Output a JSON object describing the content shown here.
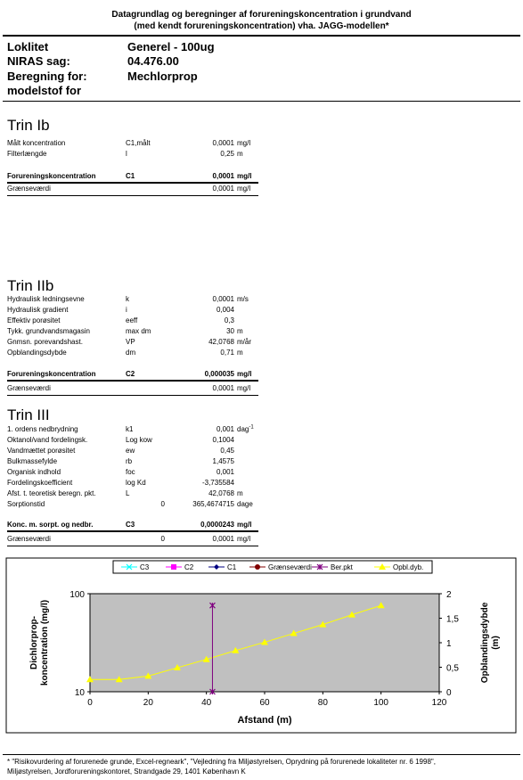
{
  "title": {
    "line1": "Datagrundlag og beregninger af forureningskoncentration i grundvand",
    "line2": "(med kendt forureningskoncentration) vha. JAGG-modellen*"
  },
  "header": [
    {
      "label": "Loklitet",
      "value": "Generel - 100ug"
    },
    {
      "label": "NIRAS sag:",
      "value": "04.476.00"
    },
    {
      "label": "Beregning for:",
      "value": "Mechlorprop"
    },
    {
      "label": "modelstof for",
      "value": ""
    }
  ],
  "trin1": {
    "title": "Trin Ib",
    "rows": [
      {
        "label": "Målt koncentration",
        "sym": "C1,målt",
        "val": "0,0001",
        "unit": "mg/l"
      },
      {
        "label": "Filterlængde",
        "sym": "l",
        "val": "0,25",
        "unit": "m"
      }
    ],
    "result": {
      "label": "Forureningskoncentration",
      "sym": "C1",
      "val": "0,0001",
      "unit": "mg/l"
    },
    "limit": {
      "label": "Grænseværdi",
      "val": "0,0001",
      "unit": "mg/l"
    }
  },
  "trin2": {
    "title": "Trin IIb",
    "rows": [
      {
        "label": "Hydraulisk ledningsevne",
        "sym": "k",
        "val": "0,0001",
        "unit": "m/s"
      },
      {
        "label": "Hydraulisk gradient",
        "sym": "i",
        "val": "0,004",
        "unit": ""
      },
      {
        "label": "Effektiv porøsitet",
        "sym": "eeff",
        "val": "0,3",
        "unit": ""
      },
      {
        "label": "Tykk. grundvandsmagasin",
        "sym": "max dm",
        "val": "30",
        "unit": "m"
      },
      {
        "label": "Gnmsn. porevandshast.",
        "sym": "VP",
        "val": "42,0768",
        "unit": "m/år"
      },
      {
        "label": "Opblandingsdybde",
        "sym": "dm",
        "val": "0,71",
        "unit": "m"
      }
    ],
    "result": {
      "label": "Forureningskoncentration",
      "sym": "C2",
      "val": "0,000035",
      "unit": "mg/l"
    },
    "limit": {
      "label": "Grænseværdi",
      "val": "0,0001",
      "unit": "mg/l"
    }
  },
  "trin3": {
    "title": "Trin III",
    "rows": [
      {
        "label": "1. ordens nedbrydning",
        "sym": "k1",
        "val": "0,001",
        "unit": "dag",
        "sup": "-1"
      },
      {
        "label": "Oktanol/vand fordelingsk.",
        "sym": "Log kow",
        "val": "0,1004",
        "unit": ""
      },
      {
        "label": "Vandmættet porøsitet",
        "sym": "ew",
        "val": "0,45",
        "unit": ""
      },
      {
        "label": "Bulkmassefylde",
        "sym": "rb",
        "val": "1,4575",
        "unit": ""
      },
      {
        "label": "Organisk indhold",
        "sym": "foc",
        "val": "0,001",
        "unit": ""
      },
      {
        "label": "Fordelingskoefficient",
        "sym": "log Kd",
        "val": "-3,735584",
        "unit": ""
      },
      {
        "label": "Afst. t. teoretisk beregn. pkt.",
        "sym": "L",
        "val": "42,0768",
        "unit": "m"
      },
      {
        "label": "Sorptionstid",
        "sym": "",
        "zero": "0",
        "val": "365,4674715",
        "unit": "dage"
      }
    ],
    "result": {
      "label": "Konc. m. sorpt. og nedbr.",
      "sym": "C3",
      "val": "0,0000243",
      "unit": "mg/l"
    },
    "limit": {
      "label": "Grænseværdi",
      "zero": "0",
      "val": "0,0001",
      "unit": "mg/l"
    }
  },
  "chart_data": {
    "type": "line",
    "legend": [
      {
        "name": "C3",
        "color": "#00ffff",
        "marker": "x"
      },
      {
        "name": "C2",
        "color": "#ff00ff",
        "marker": "square"
      },
      {
        "name": "C1",
        "color": "#000080",
        "marker": "diamond"
      },
      {
        "name": "Grænseværdi",
        "color": "#800000",
        "marker": "circle"
      },
      {
        "name": "Ber.pkt",
        "color": "#800080",
        "marker": "star"
      },
      {
        "name": "Opbl.dyb.",
        "color": "#ffff00",
        "marker": "triangle"
      }
    ],
    "xlabel": "Afstand (m)",
    "ylabel_left": "Dichlorprop-\nkoncentration (mg/l)",
    "ylabel_right": "Opblandingsdybde\n(m)",
    "xlim": [
      0,
      120
    ],
    "xticks": [
      "0",
      "20",
      "40",
      "60",
      "80",
      "100",
      "120"
    ],
    "ylim_left": [
      10,
      100
    ],
    "yticks_left": [
      "10",
      "100"
    ],
    "ylim_right": [
      0,
      2
    ],
    "yticks_right": [
      "0",
      "0,5",
      "1",
      "1,5",
      "2"
    ],
    "plot_bg": "#c0c0c0",
    "series": [
      {
        "name": "Opbl.dyb.",
        "axis": "right",
        "color": "#ffff00",
        "x": [
          0,
          10,
          20,
          30,
          40,
          50,
          60,
          70,
          80,
          90,
          100
        ],
        "y": [
          0.25,
          0.25,
          0.32,
          0.49,
          0.66,
          0.84,
          1.01,
          1.19,
          1.37,
          1.57,
          1.76
        ]
      },
      {
        "name": "Ber.pkt",
        "axis": "right",
        "color": "#800080",
        "x": [
          42.08,
          42.08
        ],
        "y": [
          0.0,
          1.76
        ]
      }
    ]
  },
  "footnote": {
    "line1": "* \"Risikovurdering af forurenede grunde, Excel-regneark\", \"Vejledning fra Miljøstyrelsen, Oprydning på forurenede lokaliteter nr. 6 1998\",",
    "line2": "Miljøstyrelsen, Jordforureningskontoret, Strandgade 29, 1401 København K"
  }
}
